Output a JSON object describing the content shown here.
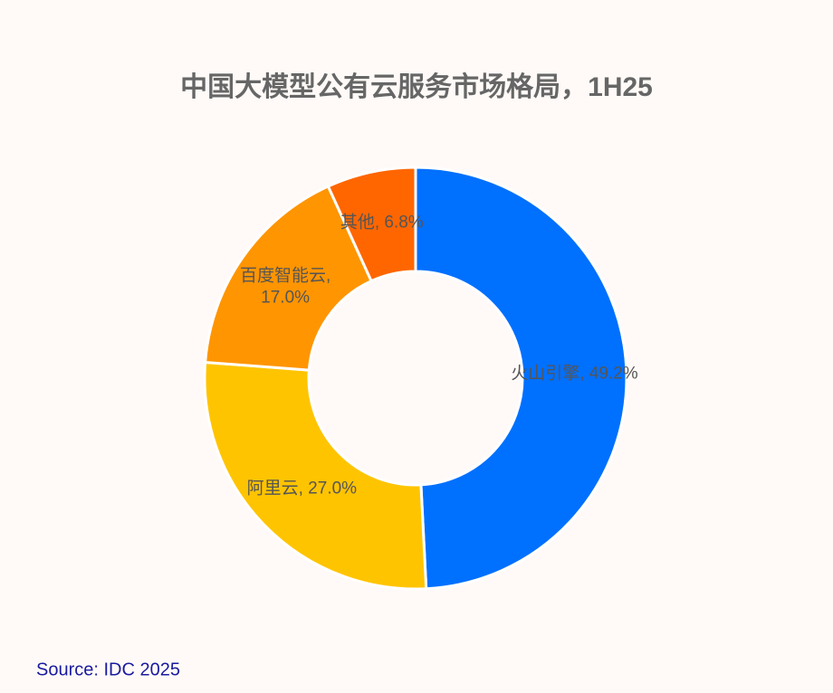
{
  "chart_data": {
    "type": "donut",
    "title": "中国大模型公有云服务市场格局，1H25",
    "values": [
      49.2,
      27.0,
      17.0,
      6.8
    ],
    "value_labels": [
      [
        "火山引擎, 49.2%"
      ],
      [
        "阿里云, 27.0%"
      ],
      [
        "百度智能云,",
        "17.0%"
      ],
      [
        "其他, 6.8%"
      ]
    ],
    "colors": [
      "#0070ff",
      "#ffc400",
      "#ff9500",
      "#ff6600"
    ],
    "source": "Source: IDC 2025"
  }
}
